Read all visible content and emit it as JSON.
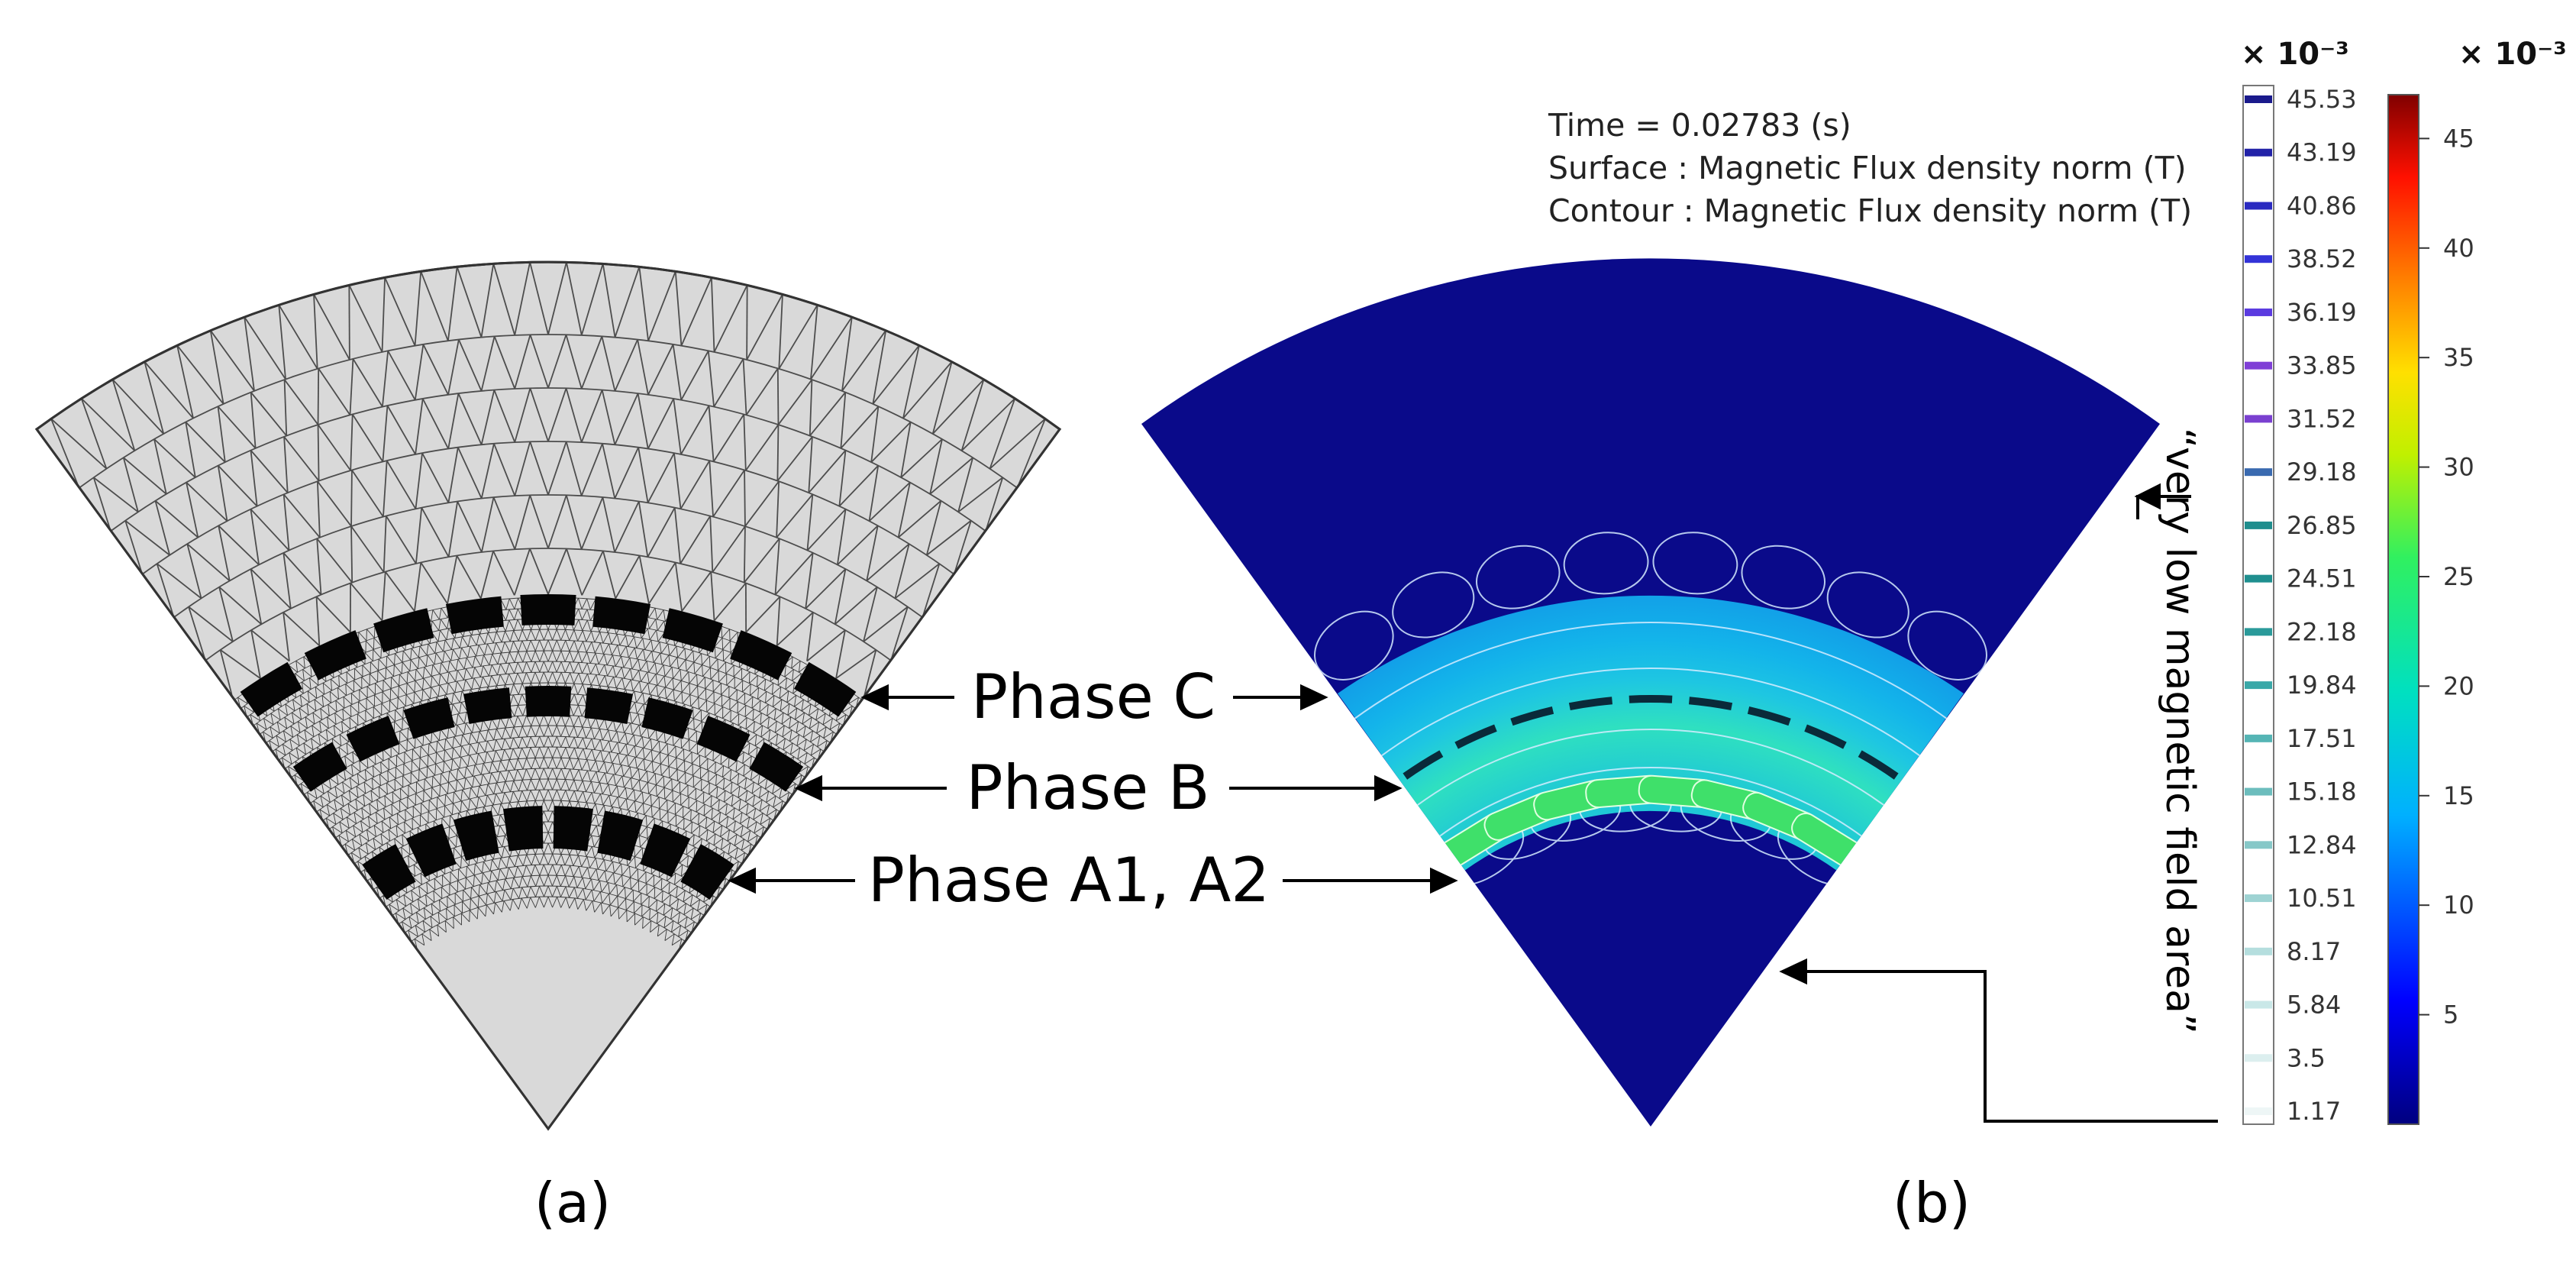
{
  "panel_a": {
    "caption": "(a)",
    "phase_labels": [
      "Phase C",
      "Phase B",
      "Phase A1, A2"
    ]
  },
  "panel_b": {
    "caption": "(b)",
    "info": {
      "time": "Time = 0.02783 (s)",
      "surface": "Surface : Magnetic Flux density norm (T)",
      "contour": "Contour : Magnetic Flux density norm (T)"
    },
    "annotation": "“very low magnetic field area”",
    "contour_legend": {
      "exponent": "× 10⁻³",
      "levels": [
        "45.53",
        "43.19",
        "40.86",
        "38.52",
        "36.19",
        "33.85",
        "31.52",
        "29.18",
        "26.85",
        "24.51",
        "22.18",
        "19.84",
        "17.51",
        "15.18",
        "12.84",
        "10.51",
        "8.17",
        "5.84",
        "3.5",
        "1.17"
      ],
      "colors": [
        "#1a1a8c",
        "#2222a8",
        "#2a2ac0",
        "#3333d8",
        "#5b3be0",
        "#7f3fd6",
        "#7a40d0",
        "#3a6ab0",
        "#1f8d8d",
        "#1f8f8f",
        "#2a9a9a",
        "#3aa8a8",
        "#55b5b5",
        "#6cbdbd",
        "#86c8c8",
        "#9ed3d3",
        "#b5dede",
        "#c9e8e8",
        "#dcefef",
        "#eef6f6"
      ]
    },
    "color_scale": {
      "exponent": "× 10⁻³",
      "ticks": [
        "45",
        "40",
        "35",
        "30",
        "25",
        "20",
        "15",
        "10",
        "5"
      ],
      "min": 0,
      "max": 47
    }
  },
  "colors": {
    "mesh_fill": "#d9d9d9",
    "mesh_line": "#4d4d4d",
    "low_field": "#0a0a8a",
    "high_field": "#20d4e0"
  }
}
